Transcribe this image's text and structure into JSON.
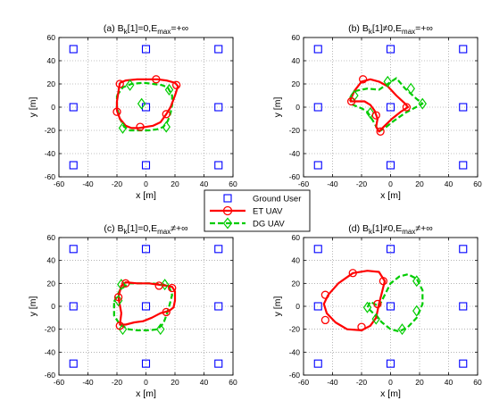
{
  "legend": {
    "location": "center",
    "entries": [
      {
        "key": "ground_user",
        "label": "Ground User",
        "color": "#0000ff",
        "marker": "square",
        "line": "none"
      },
      {
        "key": "et",
        "label": "ET UAV",
        "color": "#ff0000",
        "marker": "circle",
        "line": "solid"
      },
      {
        "key": "dg",
        "label": "DG UAV",
        "color": "#00cc00",
        "marker": "diamond",
        "line": "dashed"
      }
    ]
  },
  "chart_data": [
    {
      "type": "scatter",
      "title_prefix": "(a) B",
      "title_sub": "k",
      "title_mid": "[1]=0,E",
      "title_sub2": "max",
      "title_end": "=+∞",
      "xlabel": "x [m]",
      "ylabel": "y [m]",
      "xlim": [
        -60,
        60
      ],
      "ylim": [
        -60,
        60
      ],
      "xticks": [
        -60,
        -40,
        -20,
        0,
        20,
        40,
        60
      ],
      "yticks": [
        -60,
        -40,
        -20,
        0,
        20,
        40,
        60
      ],
      "grid": "dotted",
      "ground_users": [
        [
          -50,
          50
        ],
        [
          0,
          50
        ],
        [
          50,
          50
        ],
        [
          -50,
          0
        ],
        [
          0,
          0
        ],
        [
          50,
          0
        ],
        [
          -50,
          -50
        ],
        [
          0,
          -50
        ],
        [
          50,
          -50
        ]
      ],
      "et_path": [
        [
          -18,
          21
        ],
        [
          -14,
          23
        ],
        [
          -6,
          24
        ],
        [
          2,
          24
        ],
        [
          8,
          24
        ],
        [
          14,
          23
        ],
        [
          20,
          21
        ],
        [
          22,
          18
        ],
        [
          20,
          10
        ],
        [
          17,
          0
        ],
        [
          14,
          -6
        ],
        [
          10,
          -13
        ],
        [
          5,
          -16
        ],
        [
          0,
          -17
        ],
        [
          -5,
          -18
        ],
        [
          -10,
          -18
        ],
        [
          -14,
          -16
        ],
        [
          -18,
          -10
        ],
        [
          -20,
          -3
        ],
        [
          -20,
          5
        ],
        [
          -19,
          13
        ],
        [
          -18,
          21
        ]
      ],
      "et_markers": [
        [
          -18,
          20
        ],
        [
          7,
          24
        ],
        [
          21,
          19
        ],
        [
          14,
          -6
        ],
        [
          -4,
          -17
        ],
        [
          -20,
          -4
        ]
      ],
      "dg_path": [
        [
          -20,
          10
        ],
        [
          -16,
          17
        ],
        [
          -10,
          20
        ],
        [
          -2,
          21
        ],
        [
          5,
          20
        ],
        [
          11,
          19
        ],
        [
          15,
          17
        ],
        [
          18,
          10
        ],
        [
          18,
          2
        ],
        [
          17,
          -5
        ],
        [
          15,
          -12
        ],
        [
          12,
          -17
        ],
        [
          8,
          -19
        ],
        [
          2,
          -20
        ],
        [
          -5,
          -20
        ],
        [
          -11,
          -20
        ],
        [
          -15,
          -17
        ],
        [
          -18,
          -10
        ],
        [
          -20,
          0
        ],
        [
          -20,
          10
        ]
      ],
      "dg_markers": [
        [
          -11,
          19
        ],
        [
          16,
          15
        ],
        [
          -3,
          3
        ],
        [
          14,
          -17
        ],
        [
          -16,
          -18
        ]
      ]
    },
    {
      "type": "scatter",
      "title_prefix": "(b) B",
      "title_sub": "k",
      "title_mid": "[1]≠0,E",
      "title_sub2": "max",
      "title_end": "=+∞",
      "xlabel": "x [m]",
      "ylabel": "y [m]",
      "xlim": [
        -60,
        60
      ],
      "ylim": [
        -60,
        60
      ],
      "xticks": [
        -60,
        -40,
        -20,
        0,
        20,
        40,
        60
      ],
      "yticks": [
        -60,
        -40,
        -20,
        0,
        20,
        40,
        60
      ],
      "grid": "dotted",
      "ground_users": [
        [
          -50,
          50
        ],
        [
          0,
          50
        ],
        [
          50,
          50
        ],
        [
          -50,
          0
        ],
        [
          0,
          0
        ],
        [
          50,
          0
        ],
        [
          -50,
          -50
        ],
        [
          0,
          -50
        ],
        [
          50,
          -50
        ]
      ],
      "et_path": [
        [
          -28,
          5
        ],
        [
          -25,
          14
        ],
        [
          -20,
          22
        ],
        [
          -14,
          24
        ],
        [
          -8,
          22
        ],
        [
          -2,
          18
        ],
        [
          4,
          10
        ],
        [
          10,
          3
        ],
        [
          12,
          0
        ],
        [
          7,
          -4
        ],
        [
          1,
          -10
        ],
        [
          -4,
          -16
        ],
        [
          -8,
          -21
        ],
        [
          -10,
          -17
        ],
        [
          -9,
          -10
        ],
        [
          -11,
          -3
        ],
        [
          -14,
          2
        ],
        [
          -18,
          5
        ],
        [
          -22,
          5
        ],
        [
          -28,
          5
        ]
      ],
      "et_markers": [
        [
          -27,
          5
        ],
        [
          -19,
          24
        ],
        [
          -10,
          -7
        ],
        [
          -7,
          -21
        ],
        [
          11,
          0
        ]
      ],
      "dg_path": [
        [
          -28,
          8
        ],
        [
          -24,
          14
        ],
        [
          -16,
          16
        ],
        [
          -8,
          15
        ],
        [
          -2,
          20
        ],
        [
          4,
          25
        ],
        [
          10,
          16
        ],
        [
          18,
          7
        ],
        [
          22,
          3
        ],
        [
          16,
          -1
        ],
        [
          10,
          -5
        ],
        [
          2,
          -12
        ],
        [
          -4,
          -18
        ],
        [
          -8,
          -21
        ],
        [
          -12,
          -12
        ],
        [
          -16,
          -4
        ],
        [
          -20,
          -1
        ],
        [
          -26,
          2
        ],
        [
          -28,
          8
        ]
      ],
      "dg_markers": [
        [
          -25,
          10
        ],
        [
          -2,
          22
        ],
        [
          14,
          16
        ],
        [
          22,
          3
        ],
        [
          -14,
          -5
        ]
      ]
    },
    {
      "type": "scatter",
      "title_prefix": "(c) B",
      "title_sub": "k",
      "title_mid": "[1]=0,E",
      "title_sub2": "max",
      "title_end": "≠+∞",
      "xlabel": "x [m]",
      "ylabel": "y [m]",
      "xlim": [
        -60,
        60
      ],
      "ylim": [
        -60,
        60
      ],
      "xticks": [
        -60,
        -40,
        -20,
        0,
        20,
        40,
        60
      ],
      "yticks": [
        -60,
        -40,
        -20,
        0,
        20,
        40,
        60
      ],
      "grid": "dotted",
      "ground_users": [
        [
          -50,
          50
        ],
        [
          0,
          50
        ],
        [
          50,
          50
        ],
        [
          -50,
          0
        ],
        [
          0,
          0
        ],
        [
          50,
          0
        ],
        [
          -50,
          -50
        ],
        [
          0,
          -50
        ],
        [
          50,
          -50
        ]
      ],
      "et_path": [
        [
          -19,
          8
        ],
        [
          -17,
          18
        ],
        [
          -14,
          21
        ],
        [
          -6,
          20
        ],
        [
          2,
          20
        ],
        [
          8,
          19
        ],
        [
          14,
          18
        ],
        [
          18,
          17
        ],
        [
          20,
          13
        ],
        [
          20,
          5
        ],
        [
          19,
          -1
        ],
        [
          16,
          -4
        ],
        [
          10,
          -6
        ],
        [
          4,
          -10
        ],
        [
          -2,
          -13
        ],
        [
          -8,
          -14
        ],
        [
          -14,
          -16
        ],
        [
          -18,
          -16
        ],
        [
          -17,
          -6
        ],
        [
          -19,
          8
        ]
      ],
      "et_markers": [
        [
          -19,
          8
        ],
        [
          -14,
          20
        ],
        [
          9,
          18
        ],
        [
          18,
          16
        ],
        [
          -18,
          -17
        ],
        [
          14,
          -5
        ]
      ],
      "dg_path": [
        [
          -22,
          4
        ],
        [
          -18,
          14
        ],
        [
          -12,
          20
        ],
        [
          -4,
          20
        ],
        [
          4,
          20
        ],
        [
          12,
          19
        ],
        [
          16,
          17
        ],
        [
          18,
          10
        ],
        [
          16,
          0
        ],
        [
          14,
          -8
        ],
        [
          12,
          -15
        ],
        [
          8,
          -20
        ],
        [
          2,
          -21
        ],
        [
          -6,
          -21
        ],
        [
          -12,
          -20
        ],
        [
          -18,
          -16
        ],
        [
          -22,
          -8
        ],
        [
          -22,
          4
        ]
      ],
      "dg_markers": [
        [
          -17,
          19
        ],
        [
          13,
          19
        ],
        [
          -19,
          5
        ],
        [
          -16,
          -20
        ],
        [
          10,
          -20
        ]
      ]
    },
    {
      "type": "scatter",
      "title_prefix": "(d) B",
      "title_sub": "k",
      "title_mid": "[1]≠0,E",
      "title_sub2": "max",
      "title_end": "≠+∞",
      "xlabel": "x [m]",
      "ylabel": "y [m]",
      "xlim": [
        -60,
        60
      ],
      "ylim": [
        -60,
        60
      ],
      "xticks": [
        -60,
        -40,
        -20,
        0,
        20,
        40,
        60
      ],
      "yticks": [
        -60,
        -40,
        -20,
        0,
        20,
        40,
        60
      ],
      "grid": "dotted",
      "ground_users": [
        [
          -50,
          50
        ],
        [
          0,
          50
        ],
        [
          50,
          50
        ],
        [
          -50,
          0
        ],
        [
          0,
          0
        ],
        [
          50,
          0
        ],
        [
          -50,
          -50
        ],
        [
          0,
          -50
        ],
        [
          50,
          -50
        ]
      ],
      "et_path": [
        [
          -43,
          10
        ],
        [
          -36,
          20
        ],
        [
          -26,
          29
        ],
        [
          -16,
          31
        ],
        [
          -8,
          30
        ],
        [
          -4,
          22
        ],
        [
          -6,
          12
        ],
        [
          -8,
          2
        ],
        [
          -10,
          -10
        ],
        [
          -14,
          -17
        ],
        [
          -20,
          -21
        ],
        [
          -30,
          -20
        ],
        [
          -38,
          -14
        ],
        [
          -44,
          -6
        ],
        [
          -46,
          2
        ],
        [
          -43,
          10
        ]
      ],
      "et_markers": [
        [
          -45,
          10
        ],
        [
          -26,
          29
        ],
        [
          -5,
          22
        ],
        [
          -9,
          2
        ],
        [
          -20,
          -18
        ],
        [
          -45,
          -12
        ]
      ],
      "dg_path": [
        [
          -8,
          0
        ],
        [
          -4,
          10
        ],
        [
          0,
          20
        ],
        [
          6,
          26
        ],
        [
          12,
          28
        ],
        [
          18,
          24
        ],
        [
          22,
          14
        ],
        [
          22,
          2
        ],
        [
          18,
          -10
        ],
        [
          12,
          -18
        ],
        [
          6,
          -22
        ],
        [
          0,
          -20
        ],
        [
          -6,
          -14
        ],
        [
          -12,
          -6
        ],
        [
          -16,
          -1
        ],
        [
          -14,
          4
        ],
        [
          -8,
          0
        ]
      ],
      "dg_markers": [
        [
          -16,
          -1
        ],
        [
          -10,
          -11
        ],
        [
          8,
          -20
        ],
        [
          18,
          -4
        ],
        [
          18,
          22
        ]
      ]
    }
  ]
}
